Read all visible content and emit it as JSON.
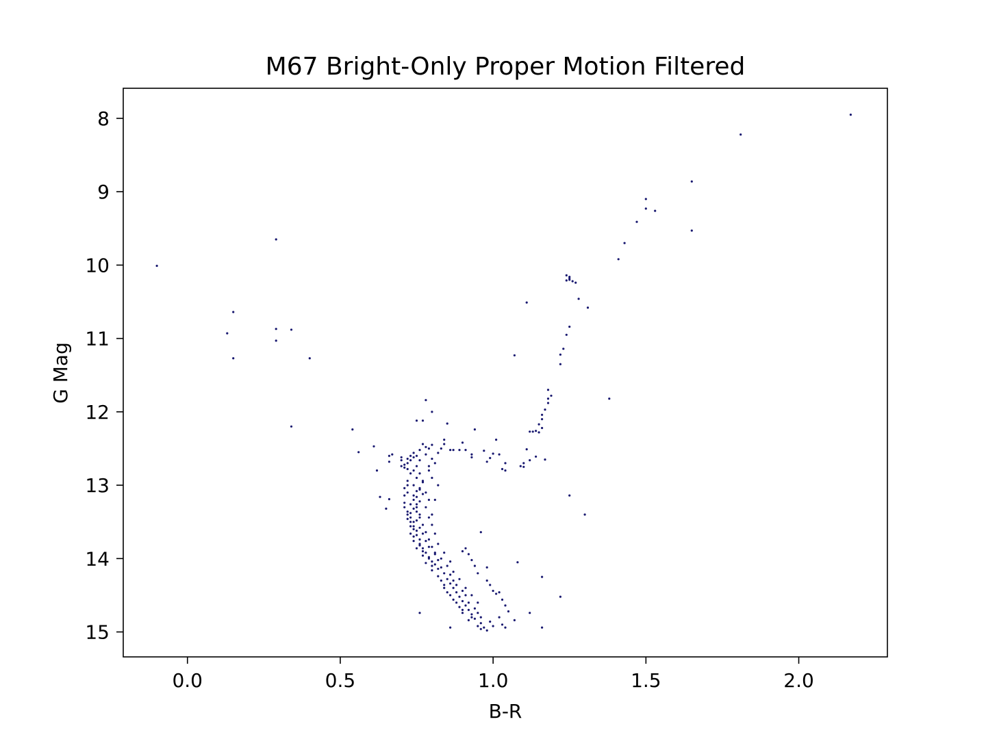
{
  "chart_data": {
    "type": "scatter",
    "title": "M67 Bright-Only Proper Motion Filtered",
    "xlabel": "B-R",
    "ylabel": "G Mag",
    "xlim": [
      -0.21,
      2.29
    ],
    "ylim": [
      15.34,
      7.59
    ],
    "y_inverted": true,
    "grid": false,
    "marker_color": "#191970",
    "x_ticks": [
      0.0,
      0.5,
      1.0,
      1.5,
      2.0
    ],
    "x_tick_labels": [
      "0.0",
      "0.5",
      "1.0",
      "1.5",
      "2.0"
    ],
    "y_ticks": [
      8,
      9,
      10,
      11,
      12,
      13,
      14,
      15
    ],
    "y_tick_labels": [
      "8",
      "9",
      "10",
      "11",
      "12",
      "13",
      "14",
      "15"
    ],
    "series": [
      {
        "points": [
          [
            2.17,
            7.95
          ],
          [
            1.81,
            8.22
          ],
          [
            1.65,
            8.86
          ],
          [
            1.5,
            9.1
          ],
          [
            1.5,
            9.23
          ],
          [
            1.53,
            9.26
          ],
          [
            1.47,
            9.41
          ],
          [
            1.65,
            9.53
          ],
          [
            1.43,
            9.7
          ],
          [
            1.41,
            9.92
          ],
          [
            1.24,
            10.14
          ],
          [
            1.25,
            10.16
          ],
          [
            1.25,
            10.2
          ],
          [
            1.24,
            10.21
          ],
          [
            1.26,
            10.22
          ],
          [
            1.25,
            10.18
          ],
          [
            1.27,
            10.24
          ],
          [
            1.28,
            10.46
          ],
          [
            1.31,
            10.58
          ],
          [
            1.11,
            10.51
          ],
          [
            1.25,
            10.84
          ],
          [
            1.24,
            10.95
          ],
          [
            1.23,
            11.14
          ],
          [
            1.22,
            11.22
          ],
          [
            1.22,
            11.35
          ],
          [
            1.07,
            11.23
          ],
          [
            1.18,
            11.7
          ],
          [
            1.19,
            11.78
          ],
          [
            1.18,
            11.82
          ],
          [
            1.18,
            11.88
          ],
          [
            1.38,
            11.82
          ],
          [
            1.17,
            11.97
          ],
          [
            1.16,
            12.04
          ],
          [
            1.16,
            12.1
          ],
          [
            1.15,
            12.17
          ],
          [
            1.16,
            12.22
          ],
          [
            1.14,
            12.26
          ],
          [
            1.15,
            12.28
          ],
          [
            1.13,
            12.27
          ],
          [
            1.12,
            12.27
          ],
          [
            1.17,
            12.65
          ],
          [
            1.14,
            12.61
          ],
          [
            1.12,
            12.66
          ],
          [
            1.11,
            12.51
          ],
          [
            1.1,
            12.7
          ],
          [
            1.09,
            12.74
          ],
          [
            1.1,
            12.75
          ],
          [
            1.03,
            12.78
          ],
          [
            1.04,
            12.8
          ],
          [
            1.04,
            12.7
          ],
          [
            1.01,
            12.38
          ],
          [
            1.0,
            12.57
          ],
          [
            1.02,
            12.58
          ],
          [
            0.99,
            12.63
          ],
          [
            0.98,
            12.68
          ],
          [
            0.97,
            12.53
          ],
          [
            0.93,
            12.58
          ],
          [
            0.93,
            12.62
          ],
          [
            0.91,
            12.52
          ],
          [
            0.9,
            12.42
          ],
          [
            0.94,
            12.24
          ],
          [
            0.89,
            12.52
          ],
          [
            0.87,
            12.52
          ],
          [
            0.86,
            12.52
          ],
          [
            0.84,
            12.38
          ],
          [
            0.84,
            12.44
          ],
          [
            0.85,
            12.16
          ],
          [
            0.8,
            12.0
          ],
          [
            0.78,
            11.84
          ],
          [
            0.77,
            12.12
          ],
          [
            0.75,
            12.12
          ],
          [
            0.8,
            12.45
          ],
          [
            0.79,
            12.5
          ],
          [
            0.78,
            12.48
          ],
          [
            0.77,
            12.44
          ],
          [
            0.76,
            12.52
          ],
          [
            0.75,
            12.6
          ],
          [
            0.74,
            12.62
          ],
          [
            0.73,
            12.66
          ],
          [
            0.72,
            12.7
          ],
          [
            0.71,
            12.72
          ],
          [
            0.7,
            12.62
          ],
          [
            0.71,
            12.76
          ],
          [
            0.72,
            12.78
          ],
          [
            0.67,
            12.58
          ],
          [
            0.66,
            12.6
          ],
          [
            0.66,
            12.68
          ],
          [
            0.61,
            12.47
          ],
          [
            0.62,
            12.8
          ],
          [
            0.56,
            12.55
          ],
          [
            0.54,
            12.24
          ],
          [
            0.63,
            13.16
          ],
          [
            0.66,
            13.19
          ],
          [
            0.65,
            13.32
          ],
          [
            0.34,
            12.2
          ],
          [
            0.4,
            11.27
          ],
          [
            0.15,
            10.64
          ],
          [
            0.13,
            10.93
          ],
          [
            0.15,
            11.27
          ],
          [
            0.29,
            10.87
          ],
          [
            0.29,
            11.03
          ],
          [
            0.34,
            10.88
          ],
          [
            0.29,
            9.65
          ],
          [
            -0.1,
            10.01
          ],
          [
            0.74,
            12.8
          ],
          [
            0.75,
            12.9
          ],
          [
            0.74,
            13.0
          ],
          [
            0.75,
            13.08
          ],
          [
            0.74,
            13.14
          ],
          [
            0.74,
            13.2
          ],
          [
            0.73,
            13.26
          ],
          [
            0.74,
            13.32
          ],
          [
            0.73,
            13.38
          ],
          [
            0.73,
            13.44
          ],
          [
            0.74,
            13.5
          ],
          [
            0.74,
            13.56
          ],
          [
            0.75,
            13.62
          ],
          [
            0.75,
            13.68
          ],
          [
            0.76,
            13.74
          ],
          [
            0.76,
            13.8
          ],
          [
            0.77,
            13.86
          ],
          [
            0.78,
            13.92
          ],
          [
            0.79,
            13.98
          ],
          [
            0.8,
            14.04
          ],
          [
            0.81,
            14.08
          ],
          [
            0.82,
            14.14
          ],
          [
            0.84,
            14.2
          ],
          [
            0.85,
            14.28
          ],
          [
            0.86,
            14.34
          ],
          [
            0.87,
            14.4
          ],
          [
            0.88,
            14.46
          ],
          [
            0.89,
            14.52
          ],
          [
            0.9,
            14.58
          ],
          [
            0.91,
            14.64
          ],
          [
            0.92,
            14.7
          ],
          [
            0.93,
            14.76
          ],
          [
            0.94,
            14.82
          ],
          [
            0.96,
            14.88
          ],
          [
            0.97,
            14.94
          ],
          [
            0.98,
            14.98
          ],
          [
            0.76,
            12.84
          ],
          [
            0.77,
            12.96
          ],
          [
            0.76,
            13.04
          ],
          [
            0.77,
            13.12
          ],
          [
            0.76,
            13.22
          ],
          [
            0.75,
            13.3
          ],
          [
            0.76,
            13.4
          ],
          [
            0.75,
            13.48
          ],
          [
            0.76,
            13.58
          ],
          [
            0.77,
            13.66
          ],
          [
            0.78,
            13.76
          ],
          [
            0.79,
            13.84
          ],
          [
            0.81,
            13.94
          ],
          [
            0.82,
            14.02
          ],
          [
            0.83,
            14.12
          ],
          [
            0.86,
            14.22
          ],
          [
            0.87,
            14.3
          ],
          [
            0.88,
            14.36
          ],
          [
            0.9,
            14.44
          ],
          [
            0.91,
            14.5
          ],
          [
            0.92,
            14.6
          ],
          [
            0.94,
            14.68
          ],
          [
            0.95,
            14.74
          ],
          [
            0.96,
            14.8
          ],
          [
            0.99,
            14.86
          ],
          [
            1.0,
            14.92
          ],
          [
            0.72,
            13.0
          ],
          [
            0.72,
            13.1
          ],
          [
            0.71,
            13.24
          ],
          [
            0.72,
            13.36
          ],
          [
            0.72,
            13.46
          ],
          [
            0.73,
            13.56
          ],
          [
            0.73,
            13.66
          ],
          [
            0.74,
            13.76
          ],
          [
            0.75,
            13.86
          ],
          [
            0.77,
            13.96
          ],
          [
            0.78,
            14.06
          ],
          [
            0.8,
            14.16
          ],
          [
            0.82,
            14.24
          ],
          [
            0.84,
            14.36
          ],
          [
            0.85,
            14.46
          ],
          [
            0.87,
            14.56
          ],
          [
            0.89,
            14.66
          ],
          [
            0.9,
            14.74
          ],
          [
            0.92,
            14.84
          ],
          [
            0.95,
            14.92
          ],
          [
            0.78,
            13.1
          ],
          [
            0.79,
            13.2
          ],
          [
            0.78,
            13.3
          ],
          [
            0.79,
            13.44
          ],
          [
            0.8,
            13.54
          ],
          [
            0.81,
            13.66
          ],
          [
            0.82,
            13.8
          ],
          [
            0.84,
            13.92
          ],
          [
            0.86,
            14.04
          ],
          [
            0.9,
            13.9
          ],
          [
            0.91,
            13.86
          ],
          [
            0.92,
            13.94
          ],
          [
            0.93,
            14.02
          ],
          [
            0.96,
            13.64
          ],
          [
            0.98,
            14.12
          ],
          [
            0.99,
            14.36
          ],
          [
            1.0,
            14.44
          ],
          [
            1.01,
            14.48
          ],
          [
            1.02,
            14.46
          ],
          [
            1.03,
            14.56
          ],
          [
            1.04,
            14.64
          ],
          [
            1.05,
            14.72
          ],
          [
            1.07,
            14.84
          ],
          [
            1.12,
            14.74
          ],
          [
            1.08,
            14.05
          ],
          [
            1.16,
            14.25
          ],
          [
            1.22,
            14.52
          ],
          [
            1.16,
            14.94
          ],
          [
            1.03,
            14.9
          ],
          [
            1.04,
            14.94
          ],
          [
            1.02,
            14.8
          ],
          [
            0.95,
            14.6
          ],
          [
            0.93,
            14.5
          ],
          [
            0.91,
            14.4
          ],
          [
            0.89,
            14.28
          ],
          [
            0.87,
            14.18
          ],
          [
            0.85,
            14.1
          ],
          [
            0.83,
            14.0
          ],
          [
            0.81,
            13.92
          ],
          [
            0.8,
            13.84
          ],
          [
            0.79,
            13.74
          ],
          [
            0.78,
            13.64
          ],
          [
            0.77,
            13.54
          ],
          [
            0.76,
            13.44
          ],
          [
            0.75,
            13.36
          ],
          [
            0.75,
            13.26
          ],
          [
            0.75,
            13.16
          ],
          [
            0.76,
            13.06
          ],
          [
            0.77,
            12.94
          ],
          [
            0.79,
            12.74
          ],
          [
            0.8,
            12.64
          ],
          [
            0.82,
            12.56
          ],
          [
            0.83,
            12.5
          ],
          [
            0.78,
            12.58
          ],
          [
            0.76,
            12.66
          ],
          [
            0.75,
            12.74
          ],
          [
            0.73,
            12.84
          ],
          [
            0.72,
            12.94
          ],
          [
            0.71,
            13.04
          ],
          [
            0.71,
            13.14
          ],
          [
            0.71,
            13.3
          ],
          [
            0.72,
            13.4
          ],
          [
            0.73,
            13.5
          ],
          [
            0.74,
            13.6
          ],
          [
            0.74,
            13.7
          ],
          [
            0.76,
            13.82
          ],
          [
            0.77,
            13.9
          ],
          [
            0.79,
            14.0
          ],
          [
            0.8,
            14.1
          ],
          [
            0.83,
            14.3
          ],
          [
            0.84,
            14.4
          ],
          [
            0.86,
            14.5
          ],
          [
            0.88,
            14.6
          ],
          [
            0.9,
            14.7
          ],
          [
            0.93,
            14.8
          ],
          [
            0.96,
            14.96
          ],
          [
            0.76,
            14.74
          ],
          [
            0.86,
            14.94
          ],
          [
            1.25,
            13.14
          ],
          [
            1.3,
            13.4
          ],
          [
            0.98,
            14.3
          ],
          [
            0.95,
            14.2
          ],
          [
            0.94,
            14.1
          ],
          [
            0.8,
            13.4
          ],
          [
            0.81,
            13.2
          ],
          [
            0.82,
            13.0
          ],
          [
            0.8,
            12.9
          ],
          [
            0.79,
            12.8
          ],
          [
            0.81,
            12.7
          ],
          [
            0.74,
            12.56
          ],
          [
            0.73,
            12.6
          ],
          [
            0.72,
            12.64
          ],
          [
            0.7,
            12.66
          ],
          [
            0.7,
            12.74
          ]
        ]
      }
    ]
  }
}
